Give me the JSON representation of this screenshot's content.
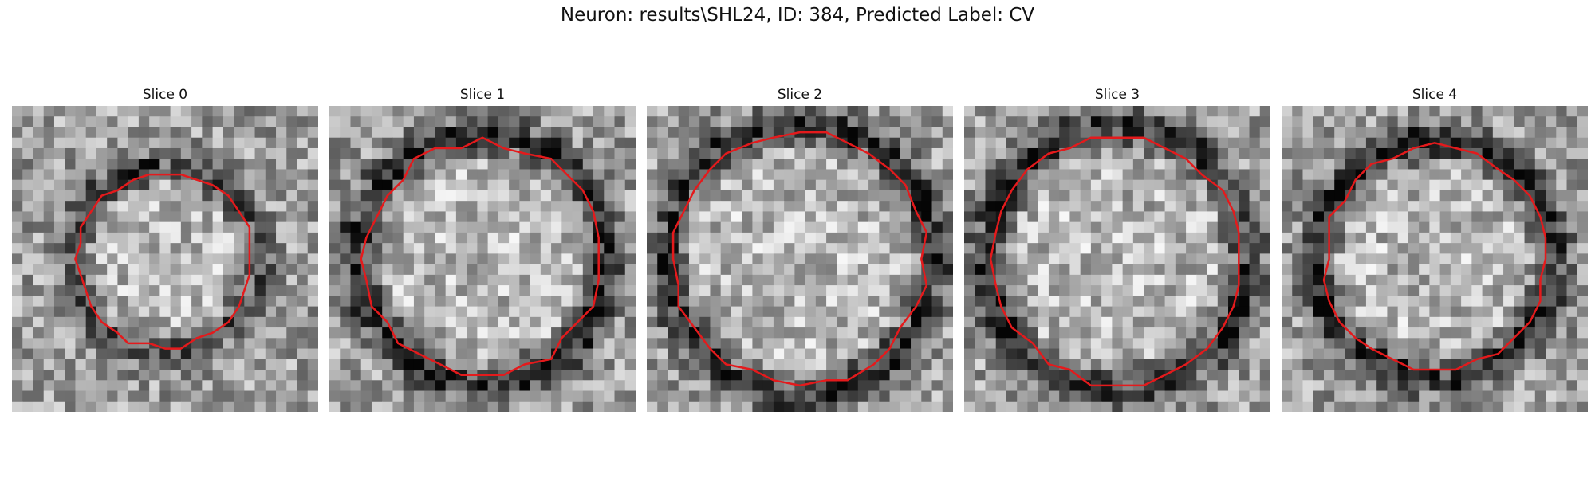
{
  "figure": {
    "title": "Neuron: results\\SHL24, ID: 384, Predicted Label: CV",
    "contour_color": "#e41a1c",
    "colormap": "grayscale",
    "grid_size": 29
  },
  "slices": [
    {
      "label": "Slice 0",
      "contour_radius_fraction": 0.29,
      "ring_darkness": 0.35
    },
    {
      "label": "Slice 1",
      "contour_radius_fraction": 0.39,
      "ring_darkness": 0.55
    },
    {
      "label": "Slice 2",
      "contour_radius_fraction": 0.42,
      "ring_darkness": 0.5
    },
    {
      "label": "Slice 3",
      "contour_radius_fraction": 0.41,
      "ring_darkness": 0.5
    },
    {
      "label": "Slice 4",
      "contour_radius_fraction": 0.37,
      "ring_darkness": 0.5
    }
  ]
}
